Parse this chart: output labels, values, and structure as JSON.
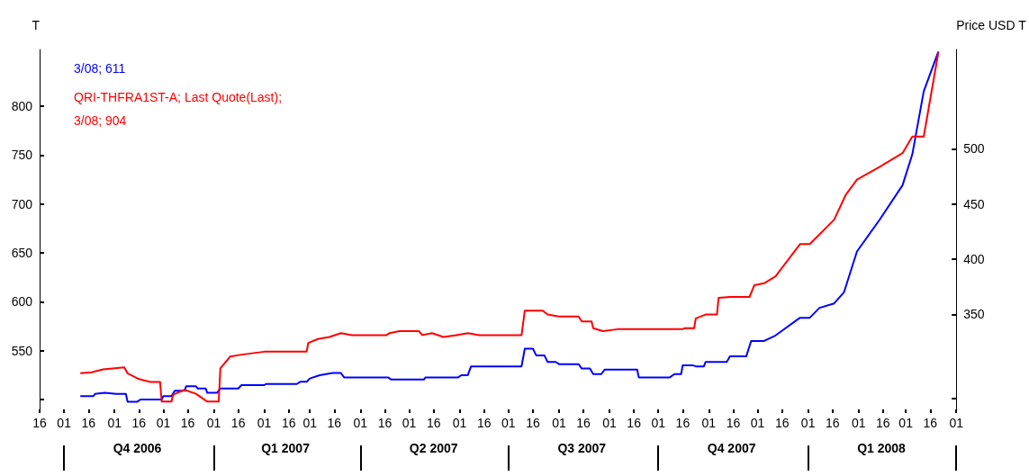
{
  "chart_data": {
    "type": "line",
    "ylabel": "T",
    "y2label": "Price USD T",
    "xlim": [
      "2006-09-16",
      "2008-04-01"
    ],
    "xticks": [
      {
        "value": "2006-09-16",
        "label": "16"
      },
      {
        "value": "2006-10-01",
        "label": "01"
      },
      {
        "value": "2006-10-16",
        "label": "16"
      },
      {
        "value": "2006-11-01",
        "label": "01"
      },
      {
        "value": "2006-11-16",
        "label": "16"
      },
      {
        "value": "2006-12-01",
        "label": "01"
      },
      {
        "value": "2006-12-16",
        "label": "16"
      },
      {
        "value": "2007-01-01",
        "label": "01"
      },
      {
        "value": "2007-01-16",
        "label": "16"
      },
      {
        "value": "2007-02-01",
        "label": "01"
      },
      {
        "value": "2007-02-16",
        "label": "16"
      },
      {
        "value": "2007-03-01",
        "label": "01"
      },
      {
        "value": "2007-03-16",
        "label": "16"
      },
      {
        "value": "2007-04-01",
        "label": "01"
      },
      {
        "value": "2007-04-16",
        "label": "16"
      },
      {
        "value": "2007-05-01",
        "label": "01"
      },
      {
        "value": "2007-05-16",
        "label": "16"
      },
      {
        "value": "2007-06-01",
        "label": "01"
      },
      {
        "value": "2007-06-16",
        "label": "16"
      },
      {
        "value": "2007-07-01",
        "label": "01"
      },
      {
        "value": "2007-07-16",
        "label": "16"
      },
      {
        "value": "2007-08-01",
        "label": "01"
      },
      {
        "value": "2007-08-16",
        "label": "16"
      },
      {
        "value": "2007-09-01",
        "label": "01"
      },
      {
        "value": "2007-09-16",
        "label": "16"
      },
      {
        "value": "2007-10-01",
        "label": "01"
      },
      {
        "value": "2007-10-16",
        "label": "16"
      },
      {
        "value": "2007-11-01",
        "label": "01"
      },
      {
        "value": "2007-11-16",
        "label": "16"
      },
      {
        "value": "2007-12-01",
        "label": "01"
      },
      {
        "value": "2007-12-16",
        "label": "16"
      },
      {
        "value": "2008-01-01",
        "label": "01"
      },
      {
        "value": "2008-01-16",
        "label": "16"
      },
      {
        "value": "2008-02-01",
        "label": "01"
      },
      {
        "value": "2008-02-16",
        "label": "16"
      },
      {
        "value": "2008-03-01",
        "label": "01"
      },
      {
        "value": "2008-03-16",
        "label": "16"
      },
      {
        "value": "2008-04-01",
        "label": "01"
      }
    ],
    "x2lim": [
      "2006-09-16",
      "2008-04-01"
    ],
    "x2ticks": [
      {
        "value": "2006-10-01",
        "label": null
      },
      {
        "value": "2006-11-15",
        "label": "Q4 2006"
      },
      {
        "value": "2007-01-01",
        "label": null
      },
      {
        "value": "2007-02-14",
        "label": "Q1 2007"
      },
      {
        "value": "2007-04-01",
        "label": null
      },
      {
        "value": "2007-05-16",
        "label": "Q2 2007"
      },
      {
        "value": "2007-07-01",
        "label": null
      },
      {
        "value": "2007-08-15",
        "label": "Q3 2007"
      },
      {
        "value": "2007-10-01",
        "label": null
      },
      {
        "value": "2007-11-15",
        "label": "Q4 2007"
      },
      {
        "value": "2008-01-01",
        "label": null
      },
      {
        "value": "2008-02-15",
        "label": "Q1 2008"
      },
      {
        "value": "2008-04-01",
        "label": null
      }
    ],
    "ylim": [
      490,
      858
    ],
    "yticks": [
      {
        "value": 500,
        "label": null
      },
      550,
      600,
      650,
      700,
      750,
      800
    ],
    "y2lim": [
      264,
      590
    ],
    "y2ticks": [
      {
        "value": 274,
        "label": null
      },
      350,
      400,
      450,
      500
    ],
    "legend": "top left",
    "grid": false,
    "series": [
      {
        "name": "3/08; 611",
        "color": "#0000ff",
        "axis": "y2",
        "x": [
          "2006-10-11",
          "2006-10-19",
          "2006-10-20",
          "2006-10-26",
          "2006-11-02",
          "2006-11-08",
          "2006-11-09",
          "2006-11-15",
          "2006-11-17",
          "2006-11-30",
          "2006-12-01",
          "2006-12-06",
          "2006-12-08",
          "2006-12-14",
          "2006-12-15",
          "2006-12-21",
          "2006-12-22",
          "2006-12-27",
          "2006-12-28",
          "2007-01-03",
          "2007-01-05",
          "2007-01-16",
          "2007-01-18",
          "2007-02-01",
          "2007-02-02",
          "2007-02-21",
          "2007-02-23",
          "2007-02-27",
          "2007-03-01",
          "2007-03-07",
          "2007-03-15",
          "2007-03-20",
          "2007-03-22",
          "2007-04-18",
          "2007-04-20",
          "2007-05-10",
          "2007-05-11",
          "2007-05-31",
          "2007-06-02",
          "2007-06-06",
          "2007-06-08",
          "2007-07-09",
          "2007-07-11",
          "2007-07-16",
          "2007-07-18",
          "2007-07-23",
          "2007-07-25",
          "2007-07-30",
          "2007-08-01",
          "2007-08-13",
          "2007-08-15",
          "2007-08-20",
          "2007-08-22",
          "2007-08-27",
          "2007-08-29",
          "2007-09-18",
          "2007-09-19",
          "2007-10-08",
          "2007-10-11",
          "2007-10-15",
          "2007-10-16",
          "2007-10-22",
          "2007-10-24",
          "2007-10-29",
          "2007-10-30",
          "2007-11-12",
          "2007-11-14",
          "2007-11-24",
          "2007-11-27",
          "2007-12-05",
          "2007-12-12",
          "2007-12-27",
          "2008-01-02",
          "2008-01-08",
          "2008-01-17",
          "2008-01-23",
          "2008-01-31",
          "2008-02-14",
          "2008-02-28",
          "2008-03-05",
          "2008-03-12",
          "2008-03-21"
        ],
        "values": [
          276,
          276,
          278,
          279,
          278,
          278,
          271,
          271,
          273,
          273,
          276,
          276,
          281,
          281,
          285,
          285,
          283,
          283,
          279,
          279,
          283,
          283,
          286,
          286,
          287,
          287,
          289,
          289,
          292,
          295,
          297,
          297,
          293,
          293,
          291,
          291,
          293,
          293,
          295,
          295,
          303,
          303,
          319,
          319,
          313,
          313,
          307,
          307,
          305,
          305,
          301,
          301,
          296,
          296,
          300,
          300,
          293,
          293,
          296,
          296,
          304,
          304,
          303,
          303,
          307,
          307,
          312,
          312,
          326,
          326,
          331,
          347,
          347,
          356,
          360,
          370,
          407,
          436,
          467,
          495,
          552,
          588
        ]
      },
      {
        "name": "QRI-THFRA1ST-A; Last Quote(Last);\n3/08; 904",
        "color": "#ff0000",
        "axis": "y",
        "x": [
          "2006-10-11",
          "2006-10-18",
          "2006-10-25",
          "2006-11-07",
          "2006-11-09",
          "2006-11-16",
          "2006-11-23",
          "2006-11-29",
          "2006-11-30",
          "2006-12-06",
          "2006-12-07",
          "2006-12-14",
          "2006-12-21",
          "2006-12-28",
          "2007-01-04",
          "2007-01-05",
          "2007-01-11",
          "2007-01-18",
          "2007-02-01",
          "2007-02-27",
          "2007-02-28",
          "2007-03-06",
          "2007-03-13",
          "2007-03-20",
          "2007-03-27",
          "2007-04-17",
          "2007-04-19",
          "2007-04-25",
          "2007-05-07",
          "2007-05-09",
          "2007-05-15",
          "2007-05-22",
          "2007-05-30",
          "2007-06-06",
          "2007-06-13",
          "2007-07-09",
          "2007-07-11",
          "2007-07-22",
          "2007-07-25",
          "2007-08-01",
          "2007-08-13",
          "2007-08-15",
          "2007-08-21",
          "2007-08-22",
          "2007-08-28",
          "2007-09-06",
          "2007-10-16",
          "2007-10-17",
          "2007-10-23",
          "2007-10-24",
          "2007-10-30",
          "2007-11-06",
          "2007-11-07",
          "2007-11-14",
          "2007-11-26",
          "2007-11-29",
          "2007-12-05",
          "2007-12-12",
          "2007-12-27",
          "2008-01-02",
          "2008-01-08",
          "2008-01-17",
          "2008-01-24",
          "2008-01-31",
          "2008-02-14",
          "2008-02-28",
          "2008-03-05",
          "2008-03-12",
          "2008-03-21"
        ],
        "values": [
          527,
          528,
          531,
          533,
          527,
          521,
          518,
          518,
          498,
          498,
          505,
          510,
          506,
          498,
          498,
          532,
          544,
          546,
          549,
          549,
          558,
          562,
          564,
          568,
          566,
          566,
          568,
          570,
          570,
          566,
          568,
          564,
          566,
          568,
          566,
          566,
          591,
          591,
          587,
          585,
          585,
          580,
          580,
          573,
          570,
          572,
          572,
          573,
          573,
          583,
          587,
          587,
          604,
          605,
          605,
          617,
          619,
          626,
          659,
          659,
          669,
          684,
          709,
          725,
          738,
          752,
          769,
          769,
          855
        ]
      }
    ]
  }
}
